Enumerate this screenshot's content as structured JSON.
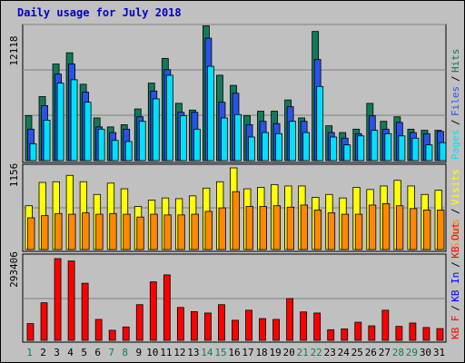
{
  "title": "Daily usage for July 2018",
  "colors": {
    "background": "#c0c0c0",
    "panel": "#c0c0c0",
    "title": "#0000cc",
    "pages": "#00e0ff",
    "files": "#2a52e8",
    "hits": "#127a5a",
    "visits": "#ffff00",
    "sites": "#ff8800",
    "kbout": "#ff0000",
    "kbin": "#0000ff",
    "kbf": "#ff0000",
    "weekday_label": "#000000",
    "weekend_label": "#127a5a"
  },
  "chart_data": [
    {
      "type": "bar",
      "name": "hits-panel",
      "ymax_label": "12118",
      "ylim": [
        0,
        12118
      ],
      "legend": [
        {
          "text": "Pages",
          "color": "#00e0ff"
        },
        {
          "text": "Files",
          "color": "#2a52e8"
        },
        {
          "text": "Hits",
          "color": "#127a5a"
        }
      ],
      "categories": [
        "1",
        "2",
        "3",
        "4",
        "5",
        "6",
        "7",
        "8",
        "9",
        "10",
        "11",
        "12",
        "13",
        "14",
        "15",
        "16",
        "17",
        "18",
        "19",
        "20",
        "21",
        "22",
        "23",
        "24",
        "25",
        "26",
        "27",
        "28",
        "29",
        "30",
        "31"
      ],
      "series": [
        {
          "name": "Hits",
          "values": [
            4000,
            5700,
            8600,
            9600,
            6800,
            3800,
            3000,
            3200,
            4600,
            6900,
            9100,
            5100,
            4500,
            12000,
            7600,
            6700,
            4000,
            4400,
            4400,
            5400,
            3800,
            11500,
            3100,
            2500,
            2800,
            5100,
            3500,
            3900,
            2800,
            2700,
            2700
          ]
        },
        {
          "name": "Files",
          "values": [
            2800,
            4900,
            7700,
            8600,
            6100,
            3000,
            2500,
            2800,
            3900,
            6200,
            8100,
            4300,
            4300,
            10900,
            5200,
            6000,
            3200,
            3500,
            3300,
            4800,
            3500,
            9000,
            2500,
            2000,
            2400,
            4000,
            2800,
            3400,
            2500,
            2400,
            2600
          ]
        },
        {
          "name": "Pages",
          "values": [
            1500,
            3600,
            6900,
            7200,
            5200,
            2800,
            1800,
            1700,
            3500,
            5500,
            7600,
            4000,
            2800,
            8400,
            3800,
            4100,
            2100,
            2500,
            2400,
            3500,
            2500,
            6600,
            2100,
            1400,
            2200,
            2700,
            2400,
            2200,
            2000,
            1400,
            1600
          ]
        }
      ]
    },
    {
      "type": "bar",
      "name": "visits-panel",
      "ymax_label": "1156",
      "ylim": [
        0,
        1156
      ],
      "legend": [
        {
          "text": "Sites",
          "color": "#ff8800"
        },
        {
          "text": "Visits",
          "color": "#ffff00"
        }
      ],
      "categories": [
        "1",
        "2",
        "3",
        "4",
        "5",
        "6",
        "7",
        "8",
        "9",
        "10",
        "11",
        "12",
        "13",
        "14",
        "15",
        "16",
        "17",
        "18",
        "19",
        "20",
        "21",
        "22",
        "23",
        "24",
        "25",
        "26",
        "27",
        "28",
        "29",
        "30",
        "31"
      ],
      "series": [
        {
          "name": "Visits",
          "values": [
            620,
            950,
            960,
            1050,
            960,
            780,
            940,
            860,
            610,
            700,
            730,
            720,
            760,
            870,
            960,
            1156,
            860,
            880,
            920,
            900,
            900,
            740,
            780,
            730,
            880,
            850,
            900,
            980,
            900,
            780,
            840
          ]
        },
        {
          "name": "Sites",
          "values": [
            450,
            480,
            510,
            500,
            520,
            500,
            510,
            500,
            460,
            500,
            490,
            490,
            500,
            540,
            590,
            820,
            610,
            610,
            620,
            600,
            630,
            560,
            520,
            500,
            500,
            630,
            650,
            620,
            580,
            560,
            560
          ]
        }
      ]
    },
    {
      "type": "bar",
      "name": "kbytes-panel",
      "ymax_label": "293406",
      "ylim": [
        0,
        293406
      ],
      "legend": [
        {
          "text": "KB F",
          "color": "#ff0000"
        },
        {
          "text": "KB In",
          "color": "#0000ff"
        },
        {
          "text": "KB Out",
          "color": "#ff0000"
        }
      ],
      "categories": [
        "1",
        "2",
        "3",
        "4",
        "5",
        "6",
        "7",
        "8",
        "9",
        "10",
        "11",
        "12",
        "13",
        "14",
        "15",
        "16",
        "17",
        "18",
        "19",
        "20",
        "21",
        "22",
        "23",
        "24",
        "25",
        "26",
        "27",
        "28",
        "29",
        "30",
        "31"
      ],
      "series": [
        {
          "name": "KB F",
          "values": [
            60000,
            135000,
            293406,
            285000,
            205000,
            75000,
            36000,
            48000,
            128000,
            210000,
            235000,
            118000,
            103000,
            98000,
            128000,
            72000,
            108000,
            78000,
            75000,
            150000,
            102000,
            98000,
            38000,
            41000,
            65000,
            52000,
            108000,
            50000,
            62000,
            46000,
            42000
          ]
        }
      ]
    }
  ],
  "xaxis": {
    "days": [
      "1",
      "2",
      "3",
      "4",
      "5",
      "6",
      "7",
      "8",
      "9",
      "10",
      "11",
      "12",
      "13",
      "14",
      "15",
      "16",
      "17",
      "18",
      "19",
      "20",
      "21",
      "22",
      "23",
      "24",
      "25",
      "26",
      "27",
      "28",
      "29",
      "30",
      "31"
    ],
    "weekend_days": [
      "1",
      "7",
      "8",
      "14",
      "15",
      "21",
      "22",
      "28",
      "29"
    ]
  }
}
